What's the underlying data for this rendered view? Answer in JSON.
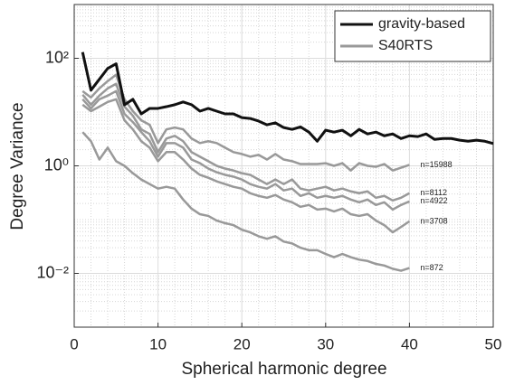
{
  "chart_data": {
    "type": "line",
    "y_scale": "log",
    "xlabel": "Spherical harmonic degree",
    "ylabel": "Degree Variance",
    "xlim": [
      0,
      50
    ],
    "xticks": [
      0,
      10,
      20,
      30,
      40,
      50
    ],
    "ylim": [
      0.001,
      1000
    ],
    "yticks": [
      {
        "value": 0.01,
        "label": "10⁻²"
      },
      {
        "value": 1,
        "label": "10⁰"
      },
      {
        "value": 100,
        "label": "10²"
      }
    ],
    "grid": true,
    "minor_grid": true,
    "legend": "upper right",
    "x": [
      1,
      2,
      3,
      4,
      5,
      6,
      7,
      8,
      9,
      10,
      11,
      12,
      13,
      14,
      15,
      16,
      17,
      18,
      19,
      20,
      21,
      22,
      23,
      24,
      25,
      26,
      27,
      28,
      29,
      30,
      31,
      32,
      33,
      34,
      35,
      36,
      37,
      38,
      39,
      40,
      41,
      42,
      43,
      44,
      45,
      46,
      47,
      48,
      49,
      50
    ],
    "groups": [
      {
        "name": "gravity-based",
        "color": "#111111",
        "series": [
          {
            "values": [
              130,
              25.5,
              40.8,
              65,
              79,
              13.6,
              17.3,
              9.25,
              11.7,
              11.7,
              12.6,
              13.7,
              15.4,
              13.7,
              10.4,
              11.7,
              10.4,
              9.25,
              9.25,
              7.9,
              7.6,
              6.8,
              5.8,
              6.3,
              5.15,
              4.76,
              5.3,
              4.24,
              2.87,
              4.6,
              4.24,
              4.6,
              3.62,
              4.76,
              3.92,
              4.24,
              3.62,
              3.92,
              3.22,
              3.62,
              3.5,
              3.92,
              3.1,
              3.22,
              3.22,
              3.0,
              2.87,
              3.0,
              2.87,
              2.6
            ]
          }
        ]
      },
      {
        "name": "S40RTS",
        "color": "#999999",
        "series": [
          {
            "label": "n=15988",
            "values": [
              24.5,
              18.7,
              27.6,
              37.7,
              49.5,
              17.3,
              10.4,
              7.03,
              5.79,
              2.65,
              4.76,
              5.15,
              4.76,
              3.22,
              2.65,
              2.87,
              2.65,
              2.18,
              1.8,
              1.66,
              1.48,
              1.6,
              1.31,
              1.66,
              1.31,
              1.22,
              1.08,
              1.08,
              1.08,
              1.12,
              1.0,
              1.12,
              0.82,
              1.12,
              1.0,
              0.96,
              1.08,
              0.82,
              0.925,
              1.04,
              null,
              null,
              null,
              null,
              null,
              null,
              null,
              null,
              null,
              null
            ]
          },
          {
            "label": "n=8112",
            "values": [
              21,
              13.7,
              20.2,
              27.6,
              33.5,
              12.6,
              8.55,
              4.76,
              3.92,
              1.8,
              3.22,
              3.62,
              2.87,
              1.8,
              1.48,
              1.22,
              1.0,
              0.89,
              0.82,
              0.73,
              0.68,
              0.557,
              0.458,
              0.557,
              0.458,
              0.557,
              0.377,
              0.349,
              0.377,
              0.408,
              0.349,
              0.377,
              0.335,
              0.31,
              0.335,
              0.255,
              0.276,
              0.227,
              0.255,
              0.31,
              null,
              null,
              null,
              null,
              null,
              null,
              null,
              null,
              null,
              null
            ]
          },
          {
            "label": "n=4922",
            "values": [
              17.3,
              11.7,
              17.3,
              20.2,
              24.5,
              9.25,
              6.51,
              4.24,
              2.87,
              1.48,
              2.65,
              2.65,
              2.18,
              1.31,
              1.12,
              0.89,
              0.76,
              0.68,
              0.63,
              0.557,
              0.458,
              0.408,
              0.377,
              0.458,
              0.349,
              0.377,
              0.276,
              0.31,
              0.255,
              0.276,
              0.255,
              0.276,
              0.236,
              0.21,
              0.236,
              0.187,
              0.21,
              0.154,
              0.187,
              0.218,
              null,
              null,
              null,
              null,
              null,
              null,
              null,
              null,
              null,
              null
            ]
          },
          {
            "label": "n=3708",
            "values": [
              13.7,
              10.4,
              12.6,
              15.4,
              17.3,
              7.03,
              4.76,
              2.87,
              2.18,
              1.22,
              1.8,
              1.8,
              1.31,
              0.89,
              0.68,
              0.6,
              0.515,
              0.458,
              0.408,
              0.377,
              0.31,
              0.276,
              0.255,
              0.287,
              0.236,
              0.21,
              0.173,
              0.187,
              0.154,
              0.16,
              0.142,
              0.16,
              0.126,
              0.117,
              0.126,
              0.096,
              0.079,
              0.058,
              0.073,
              0.093,
              null,
              null,
              null,
              null,
              null,
              null,
              null,
              null,
              null,
              null
            ]
          },
          {
            "label": "n=872",
            "values": [
              4.24,
              2.87,
              1.31,
              2.18,
              1.22,
              1.0,
              0.73,
              0.557,
              0.458,
              0.377,
              0.408,
              0.377,
              0.236,
              0.16,
              0.126,
              0.117,
              0.096,
              0.086,
              0.079,
              0.065,
              0.058,
              0.049,
              0.044,
              0.049,
              0.039,
              0.036,
              0.03,
              0.027,
              0.027,
              0.023,
              0.02,
              0.023,
              0.02,
              0.018,
              0.017,
              0.015,
              0.014,
              0.0122,
              0.0112,
              0.0126,
              null,
              null,
              null,
              null,
              null,
              null,
              null,
              null,
              null,
              null
            ]
          }
        ]
      }
    ]
  }
}
